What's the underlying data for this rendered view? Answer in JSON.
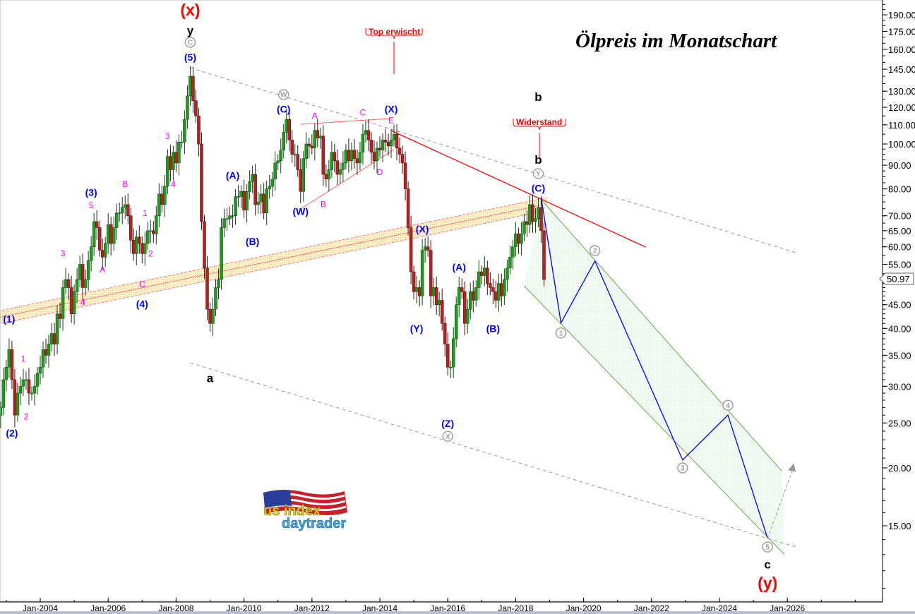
{
  "title": "Ölpreis im Monatschart",
  "logo_text": "us index daytrader",
  "last_price_label": "50.97",
  "callouts": [
    {
      "text": "Top erwischt",
      "date": "2014-05",
      "price_line_end": 135
    },
    {
      "text": "Widerstand",
      "date": "2018-09",
      "price_line_end": 93
    }
  ],
  "colors": {
    "up": "#1f9a1f",
    "down": "#b22222",
    "wave_blue": "#0000ff",
    "wave_magenta": "#ff00ff",
    "degree_red": "#ff0000",
    "circle_gray": "#a0a0a0",
    "resistance": "#ff0000",
    "band": "#ffe9a8",
    "projection_channel": "#6aa84f"
  },
  "chart_data": {
    "type": "candlestick",
    "interval": "monthly",
    "start": "2002-11",
    "yscale": "log",
    "ylim": [
      11,
      200
    ],
    "xlim": [
      "2002-10",
      "2028-03"
    ],
    "y_ticks": [
      "190.00",
      "175.00",
      "160.00",
      "145.00",
      "130.00",
      "120.00",
      "110.00",
      "100.00",
      "90.00",
      "80.00",
      "70.00",
      "65.00",
      "60.00",
      "55.00",
      "45.00",
      "40.00",
      "35.00",
      "30.00",
      "25.00",
      "20.00",
      "15.00"
    ],
    "x_ticks": [
      "Jan-2004",
      "Jan-2006",
      "Jan-2008",
      "Jan-2010",
      "Jan-2012",
      "Jan-2014",
      "Jan-2016",
      "Jan-2018",
      "Jan-2020",
      "Jan-2022",
      "Jan-2024",
      "Jan-2026"
    ],
    "close": [
      27,
      31,
      33,
      36,
      31,
      26,
      29,
      30,
      31,
      31,
      29,
      29,
      30,
      32,
      33,
      36,
      35,
      37,
      39,
      37,
      43,
      42,
      49,
      51,
      49,
      43,
      48,
      51,
      55,
      49,
      51,
      56,
      60,
      68,
      66,
      59,
      57,
      61,
      67,
      61,
      66,
      71,
      71,
      73,
      74,
      70,
      62,
      58,
      63,
      61,
      58,
      61,
      65,
      65,
      64,
      70,
      78,
      74,
      81,
      94,
      88,
      96,
      91,
      101,
      101,
      113,
      127,
      140,
      124,
      115,
      100,
      68,
      54,
      44,
      41,
      44,
      49,
      51,
      66,
      69,
      69,
      70,
      70,
      77,
      77,
      79,
      72,
      79,
      83,
      86,
      74,
      75,
      78,
      71,
      80,
      81,
      84,
      91,
      92,
      97,
      106,
      113,
      102,
      95,
      95,
      88,
      79,
      93,
      100,
      99,
      98,
      107,
      103,
      104,
      86,
      84,
      88,
      96,
      92,
      86,
      88,
      91,
      97,
      92,
      97,
      93,
      91,
      96,
      105,
      107,
      102,
      96,
      92,
      98,
      97,
      102,
      101,
      99,
      102,
      105,
      98,
      95,
      91,
      80,
      66,
      53,
      48,
      49,
      47,
      59,
      60,
      59,
      47,
      49,
      45,
      46,
      41,
      37,
      33,
      33,
      38,
      45,
      49,
      48,
      41,
      44,
      48,
      46,
      49,
      53,
      52,
      54,
      50,
      49,
      48,
      46,
      50,
      47,
      51,
      54,
      57,
      60,
      64,
      61,
      64,
      68,
      67,
      74,
      68,
      69,
      73,
      65,
      51
    ],
    "lines": [
      {
        "kind": "channel-upper",
        "style": "dashed-gray",
        "from": [
          "2008-06",
          146
        ],
        "to": [
          "2026-04",
          58.3
        ]
      },
      {
        "kind": "channel-lower",
        "style": "dashed-gray",
        "from": [
          "2008-06",
          33.7
        ],
        "to": [
          "2026-04",
          13.5
        ]
      },
      {
        "kind": "resistance",
        "style": "solid-red",
        "from": [
          "2014-05",
          106.9
        ],
        "to": [
          "2021-11",
          59.9
        ]
      },
      {
        "kind": "triangle-upper",
        "style": "thin-red",
        "from": [
          "2011-09",
          110.3
        ],
        "to": [
          "2014-05",
          113.5
        ]
      },
      {
        "kind": "triangle-lower",
        "style": "thin-red",
        "from": [
          "2011-09",
          72.4
        ],
        "to": [
          "2014-06",
          97.3
        ]
      }
    ],
    "band": {
      "from": [
        "2002-10",
        42.2
      ],
      "to": [
        "2018-12",
        74.2
      ],
      "width_factor": 1.033
    },
    "projection_channel": {
      "upper": [
        [
          "2018-10",
          75.9
        ],
        [
          "2025-11",
          19.7
        ]
      ],
      "lower": [
        [
          "2018-04",
          49.4
        ],
        [
          "2025-12",
          13.0
        ]
      ]
    },
    "projection_path": [
      [
        "2018-10",
        76.6
      ],
      [
        "2019-05",
        41.1
      ],
      [
        "2020-05",
        55.9
      ],
      [
        "2022-12",
        20.8
      ],
      [
        "2024-04",
        26.0
      ],
      [
        "2025-06",
        14.1
      ]
    ],
    "projection_arrow": {
      "from": [
        "2025-06",
        14.1
      ],
      "to": [
        "2026-03",
        19.9
      ]
    },
    "annotations": [
      {
        "text": "(x)",
        "date": "2008-06",
        "price": 195,
        "style": "red-big"
      },
      {
        "text": "y",
        "date": "2008-06",
        "price": 176,
        "style": "black"
      },
      {
        "text": "C",
        "date": "2008-06",
        "price": 165.8,
        "style": "circle"
      },
      {
        "text": "(5)",
        "date": "2008-06",
        "price": 154,
        "style": "blue"
      },
      {
        "text": "(3)",
        "date": "2005-07",
        "price": 78.6,
        "style": "blue"
      },
      {
        "text": "5",
        "date": "2005-07",
        "price": 73.8,
        "style": "magenta"
      },
      {
        "text": "B",
        "date": "2006-07",
        "price": 82,
        "style": "magenta"
      },
      {
        "text": "3",
        "date": "2004-09",
        "price": 58.1,
        "style": "magenta"
      },
      {
        "text": "A",
        "date": "2005-11",
        "price": 53.6,
        "style": "magenta"
      },
      {
        "text": "1",
        "date": "2007-02",
        "price": 71,
        "style": "magenta"
      },
      {
        "text": "2",
        "date": "2007-04",
        "price": 58,
        "style": "magenta"
      },
      {
        "text": "4",
        "date": "2005-04",
        "price": 45.6,
        "style": "magenta"
      },
      {
        "text": "C",
        "date": "2007-01",
        "price": 49.8,
        "style": "magenta"
      },
      {
        "text": "(4)",
        "date": "2007-01",
        "price": 45.2,
        "style": "blue"
      },
      {
        "text": "(1)",
        "date": "2003-02",
        "price": 41.9,
        "style": "blue"
      },
      {
        "text": "(2)",
        "date": "2003-03",
        "price": 23.8,
        "style": "blue"
      },
      {
        "text": "1",
        "date": "2003-07",
        "price": 34.4,
        "style": "magenta"
      },
      {
        "text": "2",
        "date": "2003-08",
        "price": 25.8,
        "style": "magenta"
      },
      {
        "text": "3",
        "date": "2007-10",
        "price": 104,
        "style": "magenta"
      },
      {
        "text": "4",
        "date": "2007-12",
        "price": 82,
        "style": "magenta"
      },
      {
        "text": "a",
        "date": "2009-01",
        "price": 31.3,
        "style": "black"
      },
      {
        "text": "W",
        "date": "2011-03",
        "price": 127.8,
        "style": "circle"
      },
      {
        "text": "(C)",
        "date": "2011-03",
        "price": 119,
        "style": "blue"
      },
      {
        "text": "A",
        "date": "2012-02",
        "price": 115.3,
        "style": "magenta"
      },
      {
        "text": "C",
        "date": "2013-07",
        "price": 117,
        "style": "magenta"
      },
      {
        "text": "(X)",
        "date": "2014-05",
        "price": 119,
        "style": "blue"
      },
      {
        "text": "E",
        "date": "2014-05",
        "price": 112.6,
        "style": "magenta"
      },
      {
        "text": "D",
        "date": "2014-01",
        "price": 87,
        "style": "magenta"
      },
      {
        "text": "B",
        "date": "2012-05",
        "price": 74.2,
        "style": "magenta"
      },
      {
        "text": "(W)",
        "date": "2011-09",
        "price": 71.6,
        "style": "blue"
      },
      {
        "text": "(B)",
        "date": "2010-04",
        "price": 61.6,
        "style": "blue"
      },
      {
        "text": "(A)",
        "date": "2009-09",
        "price": 85.5,
        "style": "blue"
      },
      {
        "text": "(X)",
        "date": "2015-04",
        "price": 65.6,
        "style": "blue"
      },
      {
        "text": "(Y)",
        "date": "2015-02",
        "price": 40,
        "style": "blue"
      },
      {
        "text": "(A)",
        "date": "2016-05",
        "price": 54.2,
        "style": "blue"
      },
      {
        "text": "(B)",
        "date": "2017-05",
        "price": 40,
        "style": "blue"
      },
      {
        "text": "(Z)",
        "date": "2016-01",
        "price": 24.95,
        "style": "blue"
      },
      {
        "text": "X",
        "date": "2016-01",
        "price": 23.4,
        "style": "circle"
      },
      {
        "text": "b",
        "date": "2018-09",
        "price": 126.5,
        "style": "black"
      },
      {
        "text": "b",
        "date": "2018-09",
        "price": 92.6,
        "style": "black"
      },
      {
        "text": "Y",
        "date": "2018-09",
        "price": 86.3,
        "style": "circle"
      },
      {
        "text": "(C)",
        "date": "2018-09",
        "price": 80.4,
        "style": "blue"
      },
      {
        "text": "1",
        "date": "2019-05",
        "price": 39.1,
        "style": "circle"
      },
      {
        "text": "2",
        "date": "2020-05",
        "price": 58.9,
        "style": "circle"
      },
      {
        "text": "3",
        "date": "2022-12",
        "price": 20.0,
        "style": "circle"
      },
      {
        "text": "4",
        "date": "2024-04",
        "price": 27.3,
        "style": "circle"
      },
      {
        "text": "5",
        "date": "2025-06",
        "price": 13.5,
        "style": "circle"
      },
      {
        "text": "c",
        "date": "2025-06",
        "price": 12.4,
        "style": "black"
      },
      {
        "text": "(y)",
        "date": "2025-06",
        "price": 11.3,
        "style": "red-big"
      }
    ]
  }
}
